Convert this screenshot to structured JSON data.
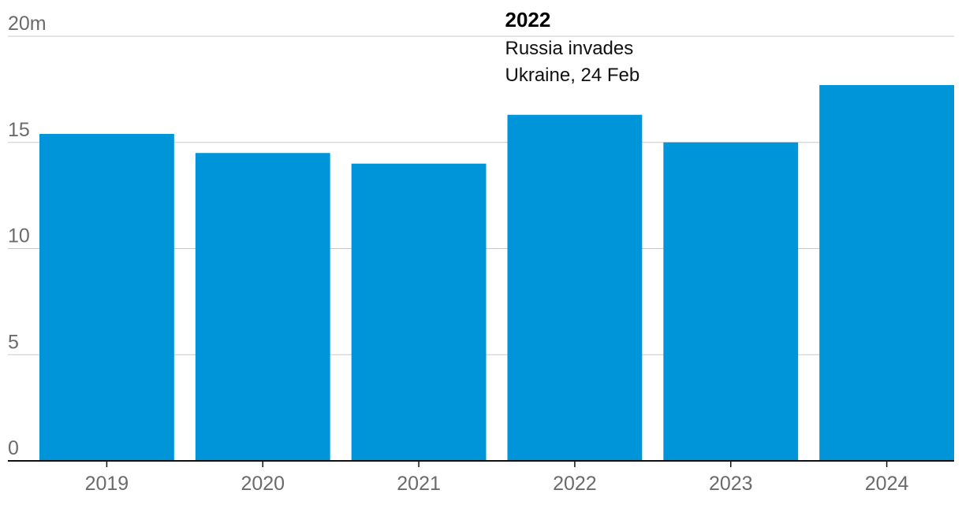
{
  "chart_data": {
    "type": "bar",
    "categories": [
      "2019",
      "2020",
      "2021",
      "2022",
      "2023",
      "2024"
    ],
    "values": [
      15.4,
      14.5,
      14.0,
      16.3,
      15.0,
      17.7
    ],
    "ylim": [
      0,
      20
    ],
    "yticks": [
      {
        "value": 20,
        "label": "20m"
      },
      {
        "value": 15,
        "label": "15"
      },
      {
        "value": 10,
        "label": "10"
      },
      {
        "value": 5,
        "label": "5"
      },
      {
        "value": 0,
        "label": "0"
      }
    ],
    "bar_color": "#0095d9",
    "grid": true,
    "annotation": {
      "category": "2022",
      "title": "2022",
      "lines": [
        "Russia invades",
        "Ukraine, 24 Feb"
      ]
    }
  }
}
